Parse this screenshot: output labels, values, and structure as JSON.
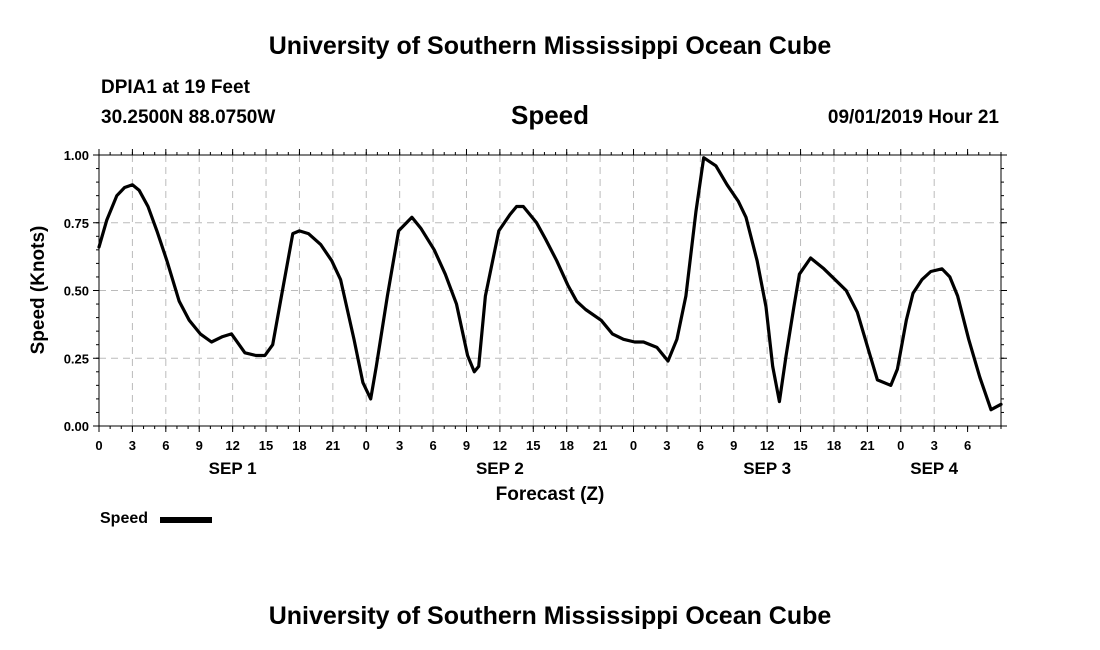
{
  "header": {
    "title_top": "University of Southern Mississippi Ocean Cube",
    "station": "DPIA1 at 19 Feet",
    "location": "30.2500N 88.0750W",
    "chart_title": "Speed",
    "datetime": "09/01/2019 Hour 21"
  },
  "footer": {
    "title_bottom": "University of Southern Mississippi Ocean Cube"
  },
  "legend": {
    "label": "Speed",
    "color": "#000000"
  },
  "chart_data": {
    "type": "line",
    "title": "Speed",
    "xlabel": "Forecast (Z)",
    "ylabel": "Speed (Knots)",
    "ylim": [
      0,
      1.0
    ],
    "xlim_hours": [
      0,
      81
    ],
    "grid": true,
    "y_ticks": [
      "0.00",
      "0.25",
      "0.50",
      "0.75",
      "1.00"
    ],
    "x_ticks": [
      "0",
      "3",
      "6",
      "9",
      "12",
      "15",
      "18",
      "21",
      "0",
      "3",
      "6",
      "9",
      "12",
      "15",
      "18",
      "21",
      "0",
      "3",
      "6",
      "9",
      "12",
      "15",
      "18",
      "21",
      "0",
      "3",
      "6"
    ],
    "day_labels": [
      {
        "label": "SEP 1",
        "hour": 12
      },
      {
        "label": "SEP 2",
        "hour": 36
      },
      {
        "label": "SEP 3",
        "hour": 60
      },
      {
        "label": "SEP 4",
        "hour": 75
      }
    ],
    "series": [
      {
        "name": "Speed",
        "color": "#000000",
        "x": [
          0,
          0.7,
          1.6,
          2.3,
          3,
          3.6,
          4.4,
          5.2,
          6.1,
          7.2,
          8.1,
          9.1,
          10.1,
          11.1,
          11.9,
          13.1,
          14.1,
          14.9,
          15.6,
          16.3,
          17.4,
          18,
          18.8,
          19.9,
          20.9,
          21.7,
          22.9,
          23.7,
          24.4,
          24.9,
          25.9,
          26.9,
          28.1,
          28.9,
          30.1,
          31.1,
          32.1,
          33.1,
          33.7,
          34.1,
          34.7,
          35.9,
          36.9,
          37.5,
          38.1,
          39.3,
          40.1,
          41.1,
          42.1,
          42.9,
          43.7,
          45.1,
          46.1,
          47.1,
          48.1,
          48.9,
          50.1,
          51.1,
          51.9,
          52.7,
          53.6,
          54.3,
          55.4,
          56.4,
          57.4,
          58.1,
          59.1,
          59.9,
          60.5,
          61.1,
          61.7,
          62.4,
          62.9,
          63.9,
          65.1,
          66.1,
          67.1,
          68.1,
          69.1,
          69.9,
          71.1,
          71.7,
          72.5,
          73.1,
          73.9,
          74.7,
          75.7,
          76.4,
          77.1,
          78.1,
          79.1,
          80.1,
          81
        ],
        "y": [
          0.66,
          0.76,
          0.85,
          0.88,
          0.89,
          0.87,
          0.81,
          0.72,
          0.61,
          0.46,
          0.39,
          0.34,
          0.31,
          0.33,
          0.34,
          0.27,
          0.26,
          0.26,
          0.3,
          0.46,
          0.71,
          0.72,
          0.71,
          0.67,
          0.61,
          0.54,
          0.32,
          0.16,
          0.1,
          0.22,
          0.48,
          0.72,
          0.77,
          0.73,
          0.65,
          0.56,
          0.45,
          0.26,
          0.2,
          0.22,
          0.48,
          0.72,
          0.78,
          0.81,
          0.81,
          0.75,
          0.69,
          0.61,
          0.52,
          0.46,
          0.43,
          0.39,
          0.34,
          0.32,
          0.31,
          0.31,
          0.29,
          0.24,
          0.32,
          0.48,
          0.79,
          0.99,
          0.96,
          0.89,
          0.83,
          0.77,
          0.61,
          0.44,
          0.22,
          0.09,
          0.26,
          0.44,
          0.56,
          0.62,
          0.58,
          0.54,
          0.5,
          0.42,
          0.28,
          0.17,
          0.15,
          0.21,
          0.39,
          0.49,
          0.54,
          0.57,
          0.58,
          0.55,
          0.48,
          0.32,
          0.18,
          0.06,
          0.08
        ]
      }
    ]
  }
}
